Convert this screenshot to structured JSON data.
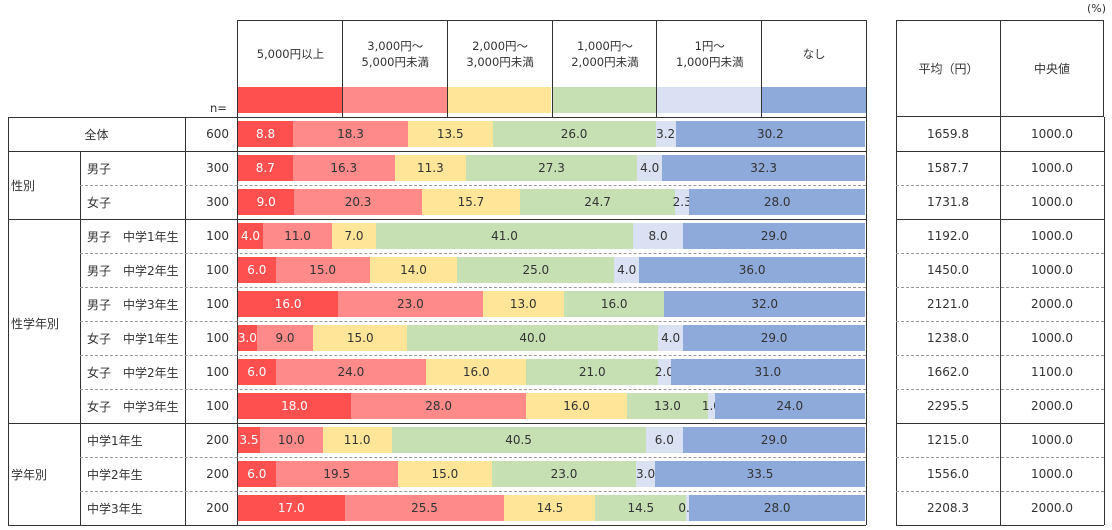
{
  "unit_label": "(%)",
  "n_label": "n=",
  "colors": [
    "#ff5050",
    "#ff8a8a",
    "#ffe598",
    "#c6e0b4",
    "#d9e1f2",
    "#8eaadb"
  ],
  "stats_headers": {
    "mean": "平均（円）",
    "median": "中央値"
  },
  "chart_data": {
    "type": "bar",
    "orientation": "horizontal-stacked-100",
    "title": "",
    "xlabel": "",
    "ylabel": "",
    "unit": "%",
    "legend": [
      "5,000円以上",
      "3,000円～\n5,000円未満",
      "2,000円～\n3,000円未満",
      "1,000円～\n2,000円未満",
      "1円～\n1,000円未満",
      "なし"
    ],
    "legend_position": "top",
    "xlim": [
      0,
      100
    ],
    "categories": [
      "全体",
      "男子",
      "女子",
      "男子　中学1年生",
      "男子　中学2年生",
      "男子　中学3年生",
      "女子　中学1年生",
      "女子　中学2年生",
      "女子　中学3年生",
      "中学1年生",
      "中学2年生",
      "中学3年生"
    ],
    "rows": [
      {
        "group": "",
        "label": "全体",
        "n": "600",
        "values": [
          8.8,
          18.3,
          13.5,
          26.0,
          3.2,
          30.2
        ],
        "mean": "1659.8",
        "median": "1000.0"
      },
      {
        "group": "性別",
        "label": "男子",
        "n": "300",
        "values": [
          8.7,
          16.3,
          11.3,
          27.3,
          4.0,
          32.3
        ],
        "mean": "1587.7",
        "median": "1000.0"
      },
      {
        "group": "性別",
        "label": "女子",
        "n": "300",
        "values": [
          9.0,
          20.3,
          15.7,
          24.7,
          2.3,
          28.0
        ],
        "mean": "1731.8",
        "median": "1000.0"
      },
      {
        "group": "性学年別",
        "label": "男子　中学1年生",
        "n": "100",
        "values": [
          4.0,
          11.0,
          7.0,
          41.0,
          8.0,
          29.0
        ],
        "mean": "1192.0",
        "median": "1000.0"
      },
      {
        "group": "性学年別",
        "label": "男子　中学2年生",
        "n": "100",
        "values": [
          6.0,
          15.0,
          14.0,
          25.0,
          4.0,
          36.0
        ],
        "mean": "1450.0",
        "median": "1000.0"
      },
      {
        "group": "性学年別",
        "label": "男子　中学3年生",
        "n": "100",
        "values": [
          16.0,
          23.0,
          13.0,
          16.0,
          0,
          32.0
        ],
        "mean": "2121.0",
        "median": "2000.0"
      },
      {
        "group": "性学年別",
        "label": "女子　中学1年生",
        "n": "100",
        "values": [
          3.0,
          9.0,
          15.0,
          40.0,
          4.0,
          29.0
        ],
        "mean": "1238.0",
        "median": "1000.0"
      },
      {
        "group": "性学年別",
        "label": "女子　中学2年生",
        "n": "100",
        "values": [
          6.0,
          24.0,
          16.0,
          21.0,
          2.0,
          31.0
        ],
        "mean": "1662.0",
        "median": "1100.0"
      },
      {
        "group": "性学年別",
        "label": "女子　中学3年生",
        "n": "100",
        "values": [
          18.0,
          28.0,
          16.0,
          13.0,
          1.0,
          24.0
        ],
        "mean": "2295.5",
        "median": "2000.0"
      },
      {
        "group": "学年別",
        "label": "中学1年生",
        "n": "200",
        "values": [
          3.5,
          10.0,
          11.0,
          40.5,
          6.0,
          29.0
        ],
        "mean": "1215.0",
        "median": "1000.0"
      },
      {
        "group": "学年別",
        "label": "中学2年生",
        "n": "200",
        "values": [
          6.0,
          19.5,
          15.0,
          23.0,
          3.0,
          33.5
        ],
        "mean": "1556.0",
        "median": "1000.0"
      },
      {
        "group": "学年別",
        "label": "中学3年生",
        "n": "200",
        "values": [
          17.0,
          25.5,
          14.5,
          14.5,
          0.5,
          28.0
        ],
        "mean": "2208.3",
        "median": "2000.0"
      }
    ],
    "groups": [
      {
        "label": "全体",
        "rows": [
          0
        ]
      },
      {
        "label": "性別",
        "rows": [
          1,
          2
        ]
      },
      {
        "label": "性学年別",
        "rows": [
          3,
          4,
          5,
          6,
          7,
          8
        ]
      },
      {
        "label": "学年別",
        "rows": [
          9,
          10,
          11
        ]
      }
    ]
  }
}
